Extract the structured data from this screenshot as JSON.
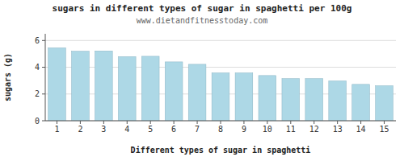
{
  "chart_data": {
    "type": "bar",
    "title": "sugars in different types of sugar in spaghetti per 100g",
    "subtitle": "www.dietandfitnesstoday.com",
    "xlabel": "Different types of sugar in spaghetti",
    "ylabel": "sugars (g)",
    "categories": [
      1,
      2,
      3,
      4,
      5,
      6,
      7,
      8,
      9,
      10,
      11,
      12,
      13,
      14,
      15
    ],
    "values": [
      5.45,
      5.2,
      5.22,
      4.8,
      4.82,
      4.4,
      4.22,
      3.58,
      3.58,
      3.38,
      3.15,
      3.15,
      2.98,
      2.72,
      2.62
    ],
    "color": "#add8e6",
    "ylim": [
      0,
      6.5
    ],
    "yticks": [
      0,
      2,
      4,
      6
    ],
    "grid": true
  }
}
